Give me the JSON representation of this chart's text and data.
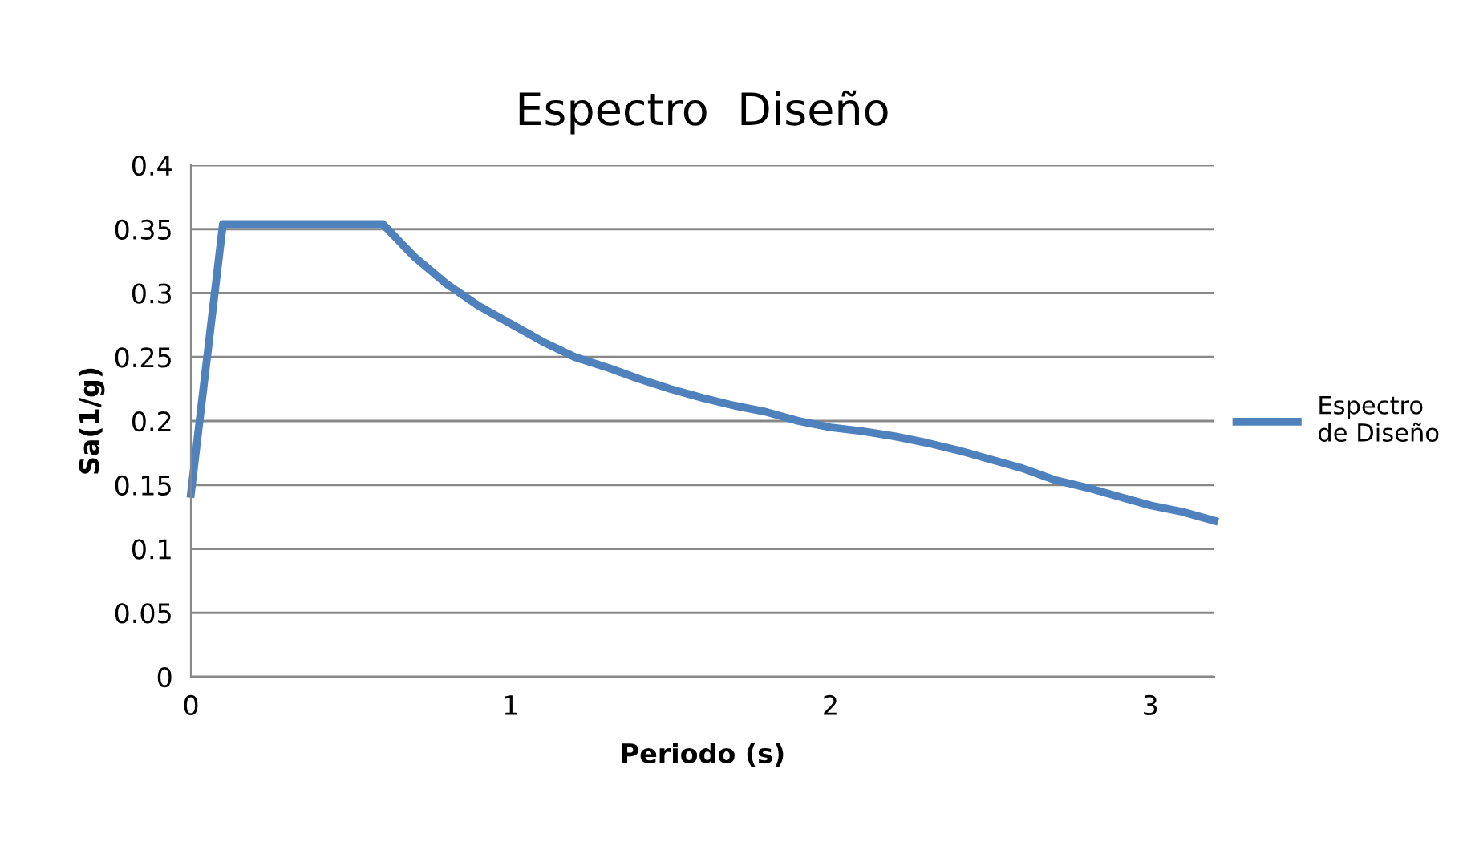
{
  "chart_data": {
    "type": "line",
    "title": "Espectro  Diseño",
    "xlabel": "Periodo (s)",
    "ylabel": "Sa(1/g)",
    "x": [
      0,
      0.1,
      0.2,
      0.3,
      0.4,
      0.5,
      0.6,
      0.7,
      0.8,
      0.9,
      1.0,
      1.1,
      1.2,
      1.3,
      1.4,
      1.5,
      1.6,
      1.7,
      1.8,
      1.9,
      2.0,
      2.1,
      2.2,
      2.3,
      2.4,
      2.5,
      2.6,
      2.7,
      2.8,
      2.9,
      3.0,
      3.1,
      3.2
    ],
    "series": [
      {
        "name": "Espectro\nde Diseño",
        "color": "#4f81bd",
        "values": [
          0.143,
          0.354,
          0.354,
          0.354,
          0.354,
          0.354,
          0.354,
          0.328,
          0.307,
          0.29,
          0.276,
          0.262,
          0.25,
          0.242,
          0.233,
          0.225,
          0.218,
          0.212,
          0.207,
          0.2,
          0.195,
          0.192,
          0.188,
          0.183,
          0.177,
          0.17,
          0.163,
          0.154,
          0.148,
          0.141,
          0.134,
          0.129,
          0.122
        ]
      }
    ],
    "xlim": [
      0,
      3.2
    ],
    "xticks": [
      0,
      1,
      2,
      3
    ],
    "ylim": [
      0,
      0.4
    ],
    "yticks": [
      0,
      0.05,
      0.1,
      0.15,
      0.2,
      0.25,
      0.3,
      0.35,
      0.4
    ],
    "grid": "y",
    "legend": "right",
    "marker": "none",
    "line_style": "solid"
  }
}
